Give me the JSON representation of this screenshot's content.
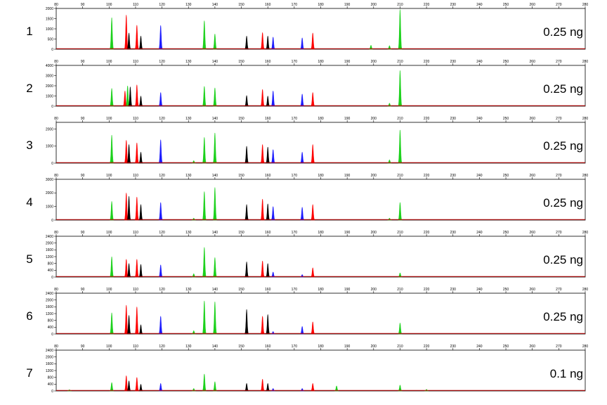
{
  "chart_data": {
    "type": "electropherogram",
    "x_ticks": [
      80,
      90,
      100,
      110,
      120,
      130,
      140,
      150,
      160,
      170,
      180,
      190,
      200,
      210,
      220,
      230,
      240,
      250,
      260,
      270,
      280
    ],
    "xlim": [
      80,
      280
    ],
    "colors": {
      "green": "#1bd11b",
      "red": "#ff0000",
      "black": "#000000",
      "blue": "#1a1aff"
    },
    "panels": [
      {
        "lane": "1",
        "amount": "0.25 ng",
        "ylim": [
          0,
          2000
        ],
        "y_ticks": [
          0,
          500,
          1000,
          1500,
          2000
        ],
        "peaks": [
          {
            "x": 101,
            "h": 1550,
            "c": "green"
          },
          {
            "x": 106.5,
            "h": 1680,
            "c": "red"
          },
          {
            "x": 107.5,
            "h": 800,
            "c": "black"
          },
          {
            "x": 110.5,
            "h": 1180,
            "c": "red"
          },
          {
            "x": 112,
            "h": 650,
            "c": "black"
          },
          {
            "x": 119.5,
            "h": 1170,
            "c": "blue"
          },
          {
            "x": 136,
            "h": 1400,
            "c": "green"
          },
          {
            "x": 140,
            "h": 750,
            "c": "green"
          },
          {
            "x": 152,
            "h": 650,
            "c": "black"
          },
          {
            "x": 158,
            "h": 820,
            "c": "red"
          },
          {
            "x": 160,
            "h": 650,
            "c": "black"
          },
          {
            "x": 162,
            "h": 600,
            "c": "blue"
          },
          {
            "x": 173,
            "h": 560,
            "c": "blue"
          },
          {
            "x": 177,
            "h": 800,
            "c": "red"
          },
          {
            "x": 199,
            "h": 200,
            "c": "green"
          },
          {
            "x": 206,
            "h": 180,
            "c": "green"
          },
          {
            "x": 210,
            "h": 1950,
            "c": "green"
          }
        ]
      },
      {
        "lane": "2",
        "amount": "0.25 ng",
        "ylim": [
          0,
          4000
        ],
        "y_ticks": [
          0,
          1000,
          2000,
          3000,
          4000
        ],
        "peaks": [
          {
            "x": 101,
            "h": 1750,
            "c": "green"
          },
          {
            "x": 106,
            "h": 1500,
            "c": "red"
          },
          {
            "x": 107,
            "h": 2000,
            "c": "green"
          },
          {
            "x": 108,
            "h": 1900,
            "c": "black"
          },
          {
            "x": 110.5,
            "h": 2100,
            "c": "red"
          },
          {
            "x": 112,
            "h": 1000,
            "c": "black"
          },
          {
            "x": 119.5,
            "h": 1350,
            "c": "blue"
          },
          {
            "x": 136,
            "h": 1950,
            "c": "green"
          },
          {
            "x": 140,
            "h": 1800,
            "c": "green"
          },
          {
            "x": 152,
            "h": 1050,
            "c": "black"
          },
          {
            "x": 158,
            "h": 1650,
            "c": "red"
          },
          {
            "x": 160,
            "h": 1000,
            "c": "black"
          },
          {
            "x": 162,
            "h": 1500,
            "c": "blue"
          },
          {
            "x": 173,
            "h": 1200,
            "c": "blue"
          },
          {
            "x": 177,
            "h": 1350,
            "c": "red"
          },
          {
            "x": 206,
            "h": 300,
            "c": "green"
          },
          {
            "x": 210,
            "h": 3500,
            "c": "green"
          }
        ]
      },
      {
        "lane": "3",
        "amount": "0.25 ng",
        "ylim": [
          0,
          2400
        ],
        "y_ticks": [
          0,
          1000,
          2000
        ],
        "peaks": [
          {
            "x": 101,
            "h": 1650,
            "c": "green"
          },
          {
            "x": 106.5,
            "h": 1350,
            "c": "red"
          },
          {
            "x": 107.5,
            "h": 1100,
            "c": "black"
          },
          {
            "x": 110.5,
            "h": 1200,
            "c": "red"
          },
          {
            "x": 112,
            "h": 650,
            "c": "black"
          },
          {
            "x": 119.5,
            "h": 1380,
            "c": "blue"
          },
          {
            "x": 132,
            "h": 150,
            "c": "green"
          },
          {
            "x": 136,
            "h": 1520,
            "c": "green"
          },
          {
            "x": 140,
            "h": 1780,
            "c": "green"
          },
          {
            "x": 152,
            "h": 1000,
            "c": "black"
          },
          {
            "x": 158,
            "h": 1100,
            "c": "red"
          },
          {
            "x": 160,
            "h": 950,
            "c": "black"
          },
          {
            "x": 162,
            "h": 800,
            "c": "blue"
          },
          {
            "x": 173,
            "h": 650,
            "c": "blue"
          },
          {
            "x": 177,
            "h": 1100,
            "c": "red"
          },
          {
            "x": 206,
            "h": 200,
            "c": "green"
          },
          {
            "x": 210,
            "h": 1950,
            "c": "green"
          }
        ]
      },
      {
        "lane": "4",
        "amount": "0.25 ng",
        "ylim": [
          0,
          3000
        ],
        "y_ticks": [
          0,
          1000,
          2000,
          3000
        ],
        "peaks": [
          {
            "x": 101,
            "h": 1380,
            "c": "green"
          },
          {
            "x": 106.5,
            "h": 2000,
            "c": "red"
          },
          {
            "x": 107.5,
            "h": 1750,
            "c": "black"
          },
          {
            "x": 110.5,
            "h": 1700,
            "c": "red"
          },
          {
            "x": 112,
            "h": 1150,
            "c": "black"
          },
          {
            "x": 119.5,
            "h": 1300,
            "c": "blue"
          },
          {
            "x": 132,
            "h": 150,
            "c": "green"
          },
          {
            "x": 136,
            "h": 2100,
            "c": "green"
          },
          {
            "x": 140,
            "h": 2400,
            "c": "green"
          },
          {
            "x": 152,
            "h": 1150,
            "c": "black"
          },
          {
            "x": 158,
            "h": 1550,
            "c": "red"
          },
          {
            "x": 160,
            "h": 1200,
            "c": "black"
          },
          {
            "x": 162,
            "h": 1000,
            "c": "blue"
          },
          {
            "x": 173,
            "h": 950,
            "c": "blue"
          },
          {
            "x": 177,
            "h": 1150,
            "c": "red"
          },
          {
            "x": 206,
            "h": 150,
            "c": "green"
          },
          {
            "x": 210,
            "h": 1300,
            "c": "green"
          }
        ]
      },
      {
        "lane": "5",
        "amount": "0.25 ng",
        "ylim": [
          0,
          2400
        ],
        "y_ticks": [
          0,
          400,
          800,
          1200,
          1600,
          2000,
          2400
        ],
        "peaks": [
          {
            "x": 101,
            "h": 1200,
            "c": "green"
          },
          {
            "x": 106.5,
            "h": 1050,
            "c": "red"
          },
          {
            "x": 107.5,
            "h": 800,
            "c": "black"
          },
          {
            "x": 110.5,
            "h": 1050,
            "c": "red"
          },
          {
            "x": 112,
            "h": 750,
            "c": "black"
          },
          {
            "x": 119.5,
            "h": 720,
            "c": "blue"
          },
          {
            "x": 132,
            "h": 200,
            "c": "green"
          },
          {
            "x": 136,
            "h": 1750,
            "c": "green"
          },
          {
            "x": 140,
            "h": 1150,
            "c": "green"
          },
          {
            "x": 152,
            "h": 900,
            "c": "black"
          },
          {
            "x": 158,
            "h": 950,
            "c": "red"
          },
          {
            "x": 160,
            "h": 800,
            "c": "black"
          },
          {
            "x": 162,
            "h": 300,
            "c": "blue"
          },
          {
            "x": 173,
            "h": 150,
            "c": "blue"
          },
          {
            "x": 177,
            "h": 550,
            "c": "red"
          },
          {
            "x": 210,
            "h": 250,
            "c": "green"
          }
        ]
      },
      {
        "lane": "6",
        "amount": "0.25 ng",
        "ylim": [
          0,
          2400
        ],
        "y_ticks": [
          0,
          400,
          800,
          1200,
          1600,
          2000,
          2400
        ],
        "peaks": [
          {
            "x": 101,
            "h": 1250,
            "c": "green"
          },
          {
            "x": 106.5,
            "h": 1700,
            "c": "red"
          },
          {
            "x": 107.5,
            "h": 1100,
            "c": "black"
          },
          {
            "x": 110.5,
            "h": 1600,
            "c": "red"
          },
          {
            "x": 112,
            "h": 550,
            "c": "black"
          },
          {
            "x": 119.5,
            "h": 1050,
            "c": "blue"
          },
          {
            "x": 132,
            "h": 200,
            "c": "green"
          },
          {
            "x": 136,
            "h": 1950,
            "c": "green"
          },
          {
            "x": 140,
            "h": 1900,
            "c": "green"
          },
          {
            "x": 152,
            "h": 1450,
            "c": "black"
          },
          {
            "x": 158,
            "h": 1050,
            "c": "red"
          },
          {
            "x": 160,
            "h": 1150,
            "c": "black"
          },
          {
            "x": 162,
            "h": 150,
            "c": "blue"
          },
          {
            "x": 173,
            "h": 450,
            "c": "blue"
          },
          {
            "x": 177,
            "h": 720,
            "c": "red"
          },
          {
            "x": 210,
            "h": 650,
            "c": "green"
          }
        ]
      },
      {
        "lane": "7",
        "amount": "0.1 ng",
        "ylim": [
          0,
          2400
        ],
        "y_ticks": [
          0,
          400,
          800,
          1200,
          1600,
          2000,
          2400
        ],
        "peaks": [
          {
            "x": 85,
            "h": 80,
            "c": "green"
          },
          {
            "x": 101,
            "h": 500,
            "c": "green"
          },
          {
            "x": 106.5,
            "h": 900,
            "c": "red"
          },
          {
            "x": 107.5,
            "h": 600,
            "c": "black"
          },
          {
            "x": 110.5,
            "h": 800,
            "c": "red"
          },
          {
            "x": 112,
            "h": 400,
            "c": "black"
          },
          {
            "x": 119.5,
            "h": 450,
            "c": "blue"
          },
          {
            "x": 132,
            "h": 150,
            "c": "green"
          },
          {
            "x": 136,
            "h": 1000,
            "c": "green"
          },
          {
            "x": 140,
            "h": 550,
            "c": "green"
          },
          {
            "x": 152,
            "h": 450,
            "c": "black"
          },
          {
            "x": 158,
            "h": 700,
            "c": "red"
          },
          {
            "x": 160,
            "h": 450,
            "c": "black"
          },
          {
            "x": 162,
            "h": 150,
            "c": "blue"
          },
          {
            "x": 173,
            "h": 150,
            "c": "blue"
          },
          {
            "x": 177,
            "h": 450,
            "c": "red"
          },
          {
            "x": 186,
            "h": 300,
            "c": "green"
          },
          {
            "x": 210,
            "h": 350,
            "c": "green"
          },
          {
            "x": 220,
            "h": 100,
            "c": "green"
          }
        ]
      }
    ]
  }
}
